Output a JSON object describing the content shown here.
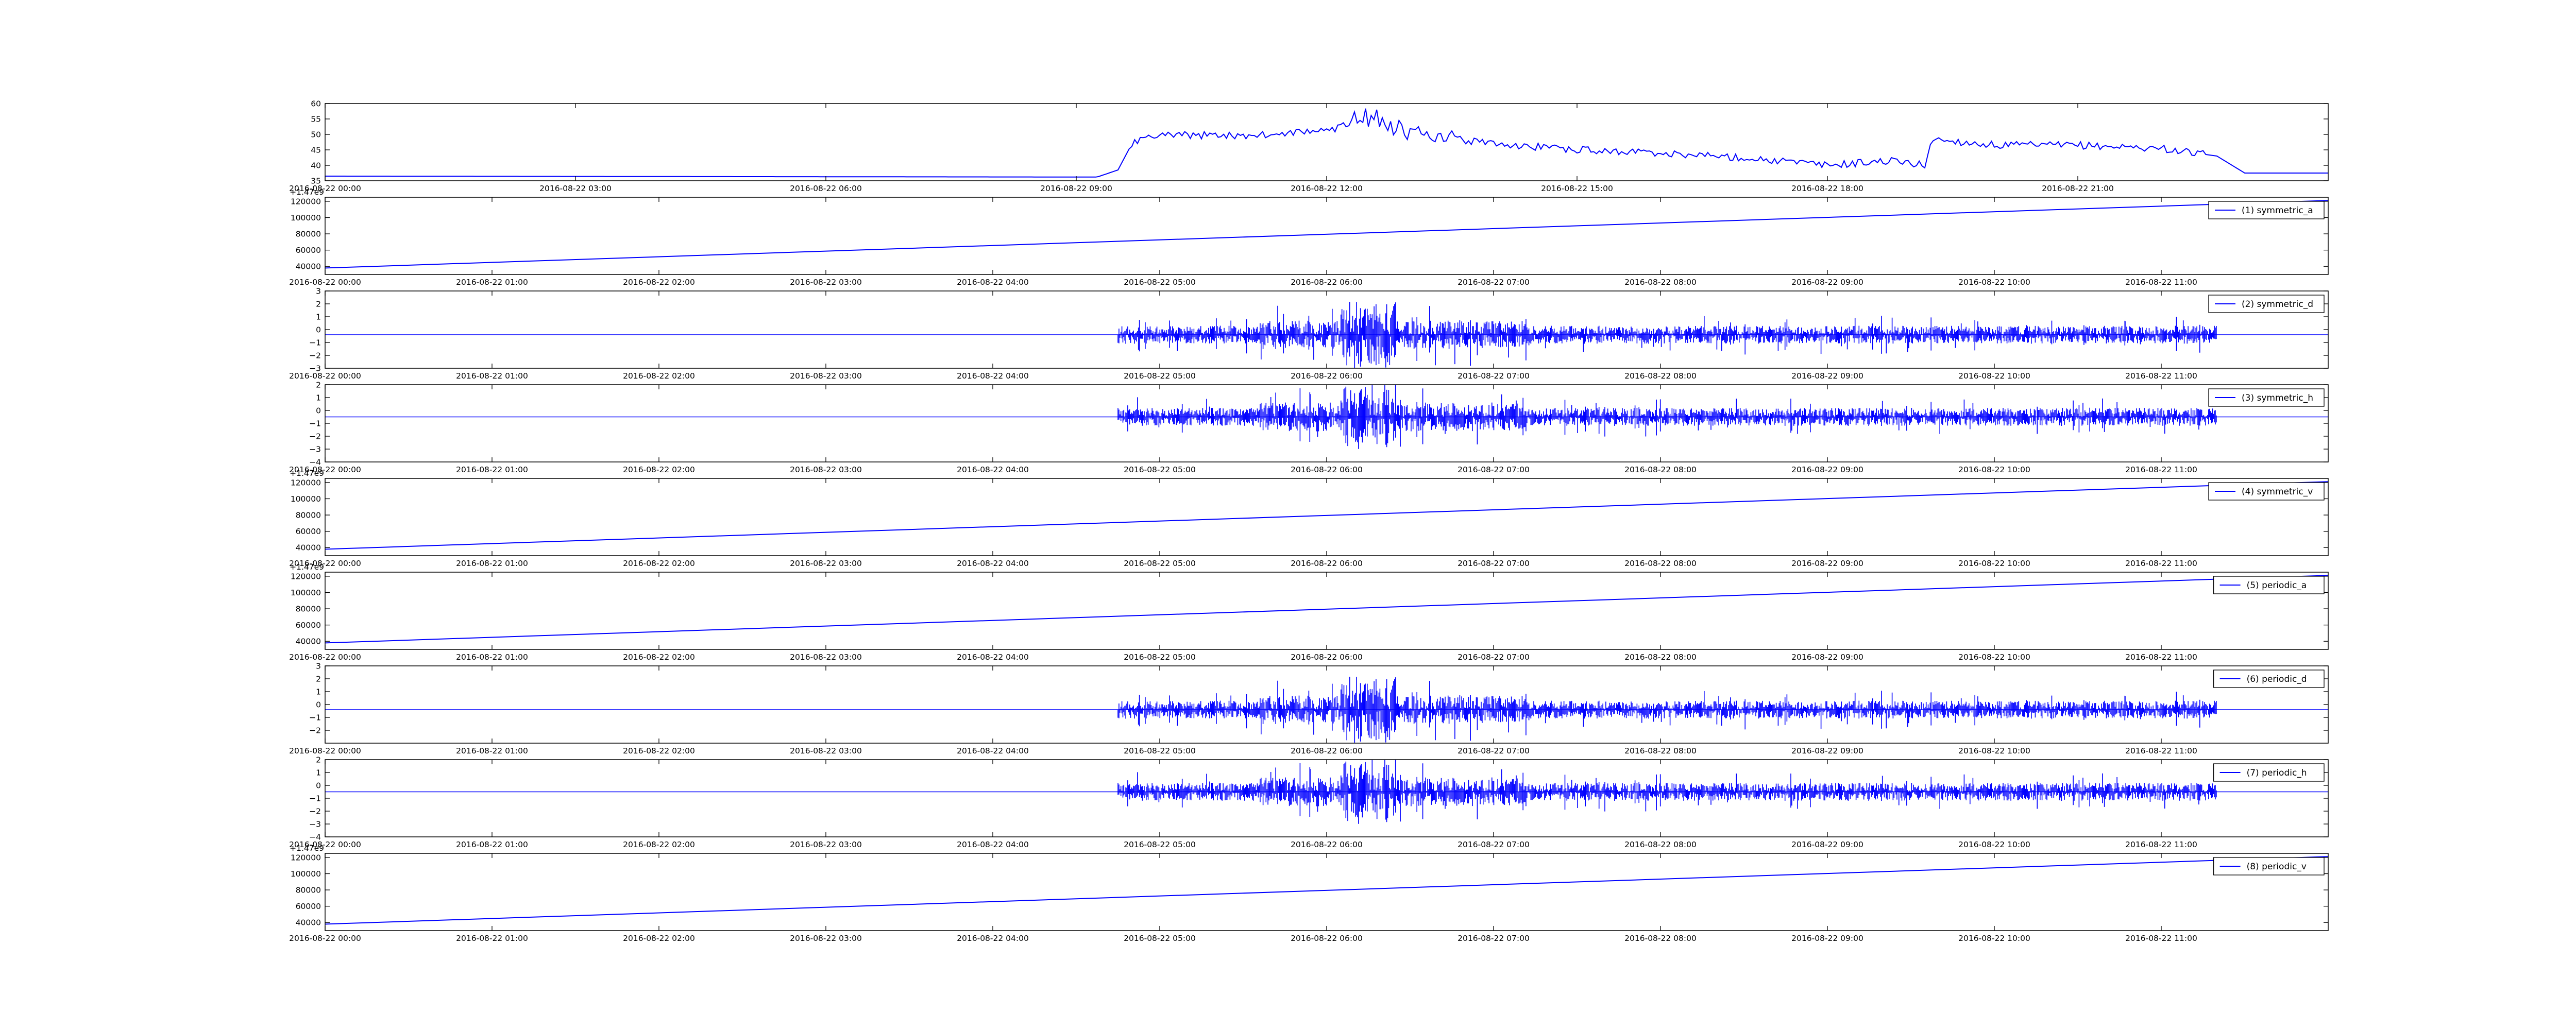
{
  "chart_data": [
    {
      "type": "line",
      "title": "",
      "xlabel": "",
      "ylabel": "",
      "ylim": [
        35,
        60
      ],
      "yticks": [
        35,
        40,
        45,
        50,
        55,
        60
      ],
      "offset_label": "",
      "xlim": [
        "2016-08-22 00:00",
        "2016-08-22 24:00"
      ],
      "xtick_labels": [
        "2016-08-22 00:00",
        "2016-08-22 03:00",
        "2016-08-22 06:00",
        "2016-08-22 09:00",
        "2016-08-22 12:00",
        "2016-08-22 15:00",
        "2016-08-22 18:00",
        "2016-08-22 21:00"
      ],
      "legend": "",
      "grid": false,
      "series": [
        {
          "color": "#0000ff",
          "kind": "level",
          "points": [
            [
              "2016-08-22 00:00",
              36.5
            ],
            [
              "2016-08-22 09:15",
              36.2
            ],
            [
              "2016-08-22 09:30",
              38.5
            ],
            [
              "2016-08-22 09:40",
              47.0
            ],
            [
              "2016-08-22 10:00",
              50.0
            ],
            [
              "2016-08-22 11:00",
              49.5
            ],
            [
              "2016-08-22 11:30",
              50.5
            ],
            [
              "2016-08-22 12:00",
              51.0
            ],
            [
              "2016-08-22 12:35",
              56.5
            ],
            [
              "2016-08-22 13:00",
              50.0
            ],
            [
              "2016-08-22 14:00",
              47.0
            ],
            [
              "2016-08-22 15:00",
              45.0
            ],
            [
              "2016-08-22 16:00",
              44.0
            ],
            [
              "2016-08-22 17:00",
              42.5
            ],
            [
              "2016-08-22 18:00",
              40.0
            ],
            [
              "2016-08-22 18:45",
              41.5
            ],
            [
              "2016-08-22 19:10",
              40.0
            ],
            [
              "2016-08-22 19:15",
              48.5
            ],
            [
              "2016-08-22 20:00",
              46.5
            ],
            [
              "2016-08-22 21:00",
              46.5
            ],
            [
              "2016-08-22 22:00",
              45.5
            ],
            [
              "2016-08-22 22:40",
              43.0
            ],
            [
              "2016-08-22 23:00",
              37.5
            ],
            [
              "2016-08-22 24:00",
              37.5
            ]
          ],
          "noise": [
            [
              "2016-08-22 09:40",
              "2016-08-22 22:30",
              1.2
            ],
            [
              "2016-08-22 12:20",
              "2016-08-22 13:30",
              3.5
            ]
          ]
        }
      ]
    },
    {
      "type": "line",
      "ylim": [
        30000,
        125000
      ],
      "yticks": [
        40000,
        60000,
        80000,
        100000,
        120000
      ],
      "offset_label": "+1.47e9",
      "xlim": [
        "2016-08-22 00:00",
        "2016-08-22 12:00"
      ],
      "xtick_labels": [
        "2016-08-22 00:00",
        "2016-08-22 01:00",
        "2016-08-22 02:00",
        "2016-08-22 03:00",
        "2016-08-22 04:00",
        "2016-08-22 05:00",
        "2016-08-22 06:00",
        "2016-08-22 07:00",
        "2016-08-22 08:00",
        "2016-08-22 09:00",
        "2016-08-22 10:00",
        "2016-08-22 11:00"
      ],
      "legend": "top-right",
      "grid": false,
      "series": [
        {
          "name": "(1) symmetric_a",
          "color": "#0000ff",
          "kind": "ramp",
          "points": [
            [
              "2016-08-22 00:00",
              38000
            ],
            [
              "2016-08-22 12:00",
              121000
            ]
          ]
        }
      ]
    },
    {
      "type": "line",
      "ylim": [
        -3,
        3
      ],
      "yticks": [
        -3,
        -2,
        -1,
        0,
        1,
        2,
        3
      ],
      "ytick_labels": [
        "−3",
        "−2",
        "−1",
        "0",
        "1",
        "2",
        "3"
      ],
      "offset_label": "",
      "xlim": [
        "2016-08-22 00:00",
        "2016-08-22 12:00"
      ],
      "xtick_labels": [
        "2016-08-22 00:00",
        "2016-08-22 01:00",
        "2016-08-22 02:00",
        "2016-08-22 03:00",
        "2016-08-22 04:00",
        "2016-08-22 05:00",
        "2016-08-22 06:00",
        "2016-08-22 07:00",
        "2016-08-22 08:00",
        "2016-08-22 09:00",
        "2016-08-22 10:00",
        "2016-08-22 11:00"
      ],
      "legend": "top-right",
      "grid": false,
      "series": [
        {
          "name": "(2) symmetric_d",
          "color": "#0000ff",
          "kind": "spikes",
          "baseline": -0.4,
          "active": [
            "2016-08-22 04:45",
            "2016-08-22 11:20"
          ],
          "burst": [
            "2016-08-22 06:05",
            "2016-08-22 06:25"
          ],
          "amplitude": 0.7,
          "burst_amplitude": 2.6,
          "seed": 2
        }
      ]
    },
    {
      "type": "line",
      "ylim": [
        -4,
        2
      ],
      "yticks": [
        -4,
        -3,
        -2,
        -1,
        0,
        1,
        2
      ],
      "ytick_labels": [
        "−4",
        "−3",
        "−2",
        "−1",
        "0",
        "1",
        "2"
      ],
      "offset_label": "",
      "xlim": [
        "2016-08-22 00:00",
        "2016-08-22 12:00"
      ],
      "xtick_labels": [
        "2016-08-22 00:00",
        "2016-08-22 01:00",
        "2016-08-22 02:00",
        "2016-08-22 03:00",
        "2016-08-22 04:00",
        "2016-08-22 05:00",
        "2016-08-22 06:00",
        "2016-08-22 07:00",
        "2016-08-22 08:00",
        "2016-08-22 09:00",
        "2016-08-22 10:00",
        "2016-08-22 11:00"
      ],
      "legend": "top-right",
      "grid": false,
      "series": [
        {
          "name": "(3) symmetric_h",
          "color": "#0000ff",
          "kind": "spikes",
          "baseline": -0.5,
          "active": [
            "2016-08-22 04:45",
            "2016-08-22 11:20"
          ],
          "burst": [
            "2016-08-22 06:05",
            "2016-08-22 06:25"
          ],
          "amplitude": 0.7,
          "burst_amplitude": 2.5,
          "seed": 3
        }
      ]
    },
    {
      "type": "line",
      "ylim": [
        30000,
        125000
      ],
      "yticks": [
        40000,
        60000,
        80000,
        100000,
        120000
      ],
      "offset_label": "+1.47e9",
      "xlim": [
        "2016-08-22 00:00",
        "2016-08-22 12:00"
      ],
      "xtick_labels": [
        "2016-08-22 00:00",
        "2016-08-22 01:00",
        "2016-08-22 02:00",
        "2016-08-22 03:00",
        "2016-08-22 04:00",
        "2016-08-22 05:00",
        "2016-08-22 06:00",
        "2016-08-22 07:00",
        "2016-08-22 08:00",
        "2016-08-22 09:00",
        "2016-08-22 10:00",
        "2016-08-22 11:00"
      ],
      "legend": "top-right",
      "grid": false,
      "series": [
        {
          "name": "(4) symmetric_v",
          "color": "#0000ff",
          "kind": "ramp",
          "points": [
            [
              "2016-08-22 00:00",
              38000
            ],
            [
              "2016-08-22 12:00",
              121000
            ]
          ]
        }
      ]
    },
    {
      "type": "line",
      "ylim": [
        30000,
        125000
      ],
      "yticks": [
        40000,
        60000,
        80000,
        100000,
        120000
      ],
      "offset_label": "+1.47e9",
      "xlim": [
        "2016-08-22 00:00",
        "2016-08-22 12:00"
      ],
      "xtick_labels": [
        "2016-08-22 00:00",
        "2016-08-22 01:00",
        "2016-08-22 02:00",
        "2016-08-22 03:00",
        "2016-08-22 04:00",
        "2016-08-22 05:00",
        "2016-08-22 06:00",
        "2016-08-22 07:00",
        "2016-08-22 08:00",
        "2016-08-22 09:00",
        "2016-08-22 10:00",
        "2016-08-22 11:00"
      ],
      "legend": "top-right",
      "grid": false,
      "series": [
        {
          "name": "(5) periodic_a",
          "color": "#0000ff",
          "kind": "ramp",
          "points": [
            [
              "2016-08-22 00:00",
              38000
            ],
            [
              "2016-08-22 12:00",
              121000
            ]
          ]
        }
      ]
    },
    {
      "type": "line",
      "ylim": [
        -3,
        3
      ],
      "yticks": [
        -2,
        -1,
        0,
        1,
        2,
        3
      ],
      "ytick_labels": [
        "−2",
        "−1",
        "0",
        "1",
        "2",
        "3"
      ],
      "offset_label": "",
      "xlim": [
        "2016-08-22 00:00",
        "2016-08-22 12:00"
      ],
      "xtick_labels": [
        "2016-08-22 00:00",
        "2016-08-22 01:00",
        "2016-08-22 02:00",
        "2016-08-22 03:00",
        "2016-08-22 04:00",
        "2016-08-22 05:00",
        "2016-08-22 06:00",
        "2016-08-22 07:00",
        "2016-08-22 08:00",
        "2016-08-22 09:00",
        "2016-08-22 10:00",
        "2016-08-22 11:00"
      ],
      "legend": "top-right",
      "grid": false,
      "series": [
        {
          "name": "(6) periodic_d",
          "color": "#0000ff",
          "kind": "spikes",
          "baseline": -0.4,
          "active": [
            "2016-08-22 04:45",
            "2016-08-22 11:20"
          ],
          "burst": [
            "2016-08-22 06:05",
            "2016-08-22 06:25"
          ],
          "amplitude": 0.7,
          "burst_amplitude": 2.6,
          "seed": 2
        }
      ]
    },
    {
      "type": "line",
      "ylim": [
        -4,
        2
      ],
      "yticks": [
        -4,
        -3,
        -2,
        -1,
        0,
        1,
        2
      ],
      "ytick_labels": [
        "−4",
        "−3",
        "−2",
        "−1",
        "0",
        "1",
        "2"
      ],
      "offset_label": "",
      "xlim": [
        "2016-08-22 00:00",
        "2016-08-22 12:00"
      ],
      "xtick_labels": [
        "2016-08-22 00:00",
        "2016-08-22 01:00",
        "2016-08-22 02:00",
        "2016-08-22 03:00",
        "2016-08-22 04:00",
        "2016-08-22 05:00",
        "2016-08-22 06:00",
        "2016-08-22 07:00",
        "2016-08-22 08:00",
        "2016-08-22 09:00",
        "2016-08-22 10:00",
        "2016-08-22 11:00"
      ],
      "legend": "top-right",
      "grid": false,
      "series": [
        {
          "name": "(7) periodic_h",
          "color": "#0000ff",
          "kind": "spikes",
          "baseline": -0.5,
          "active": [
            "2016-08-22 04:45",
            "2016-08-22 11:20"
          ],
          "burst": [
            "2016-08-22 06:05",
            "2016-08-22 06:25"
          ],
          "amplitude": 0.7,
          "burst_amplitude": 2.5,
          "seed": 3
        }
      ]
    },
    {
      "type": "line",
      "ylim": [
        30000,
        125000
      ],
      "yticks": [
        40000,
        60000,
        80000,
        100000,
        120000
      ],
      "offset_label": "+1.47e9",
      "xlim": [
        "2016-08-22 00:00",
        "2016-08-22 12:00"
      ],
      "xtick_labels": [
        "2016-08-22 00:00",
        "2016-08-22 01:00",
        "2016-08-22 02:00",
        "2016-08-22 03:00",
        "2016-08-22 04:00",
        "2016-08-22 05:00",
        "2016-08-22 06:00",
        "2016-08-22 07:00",
        "2016-08-22 08:00",
        "2016-08-22 09:00",
        "2016-08-22 10:00",
        "2016-08-22 11:00"
      ],
      "legend": "top-right",
      "grid": false,
      "series": [
        {
          "name": "(8) periodic_v",
          "color": "#0000ff",
          "kind": "ramp",
          "points": [
            [
              "2016-08-22 00:00",
              38000
            ],
            [
              "2016-08-22 12:00",
              121000
            ]
          ]
        }
      ]
    }
  ]
}
